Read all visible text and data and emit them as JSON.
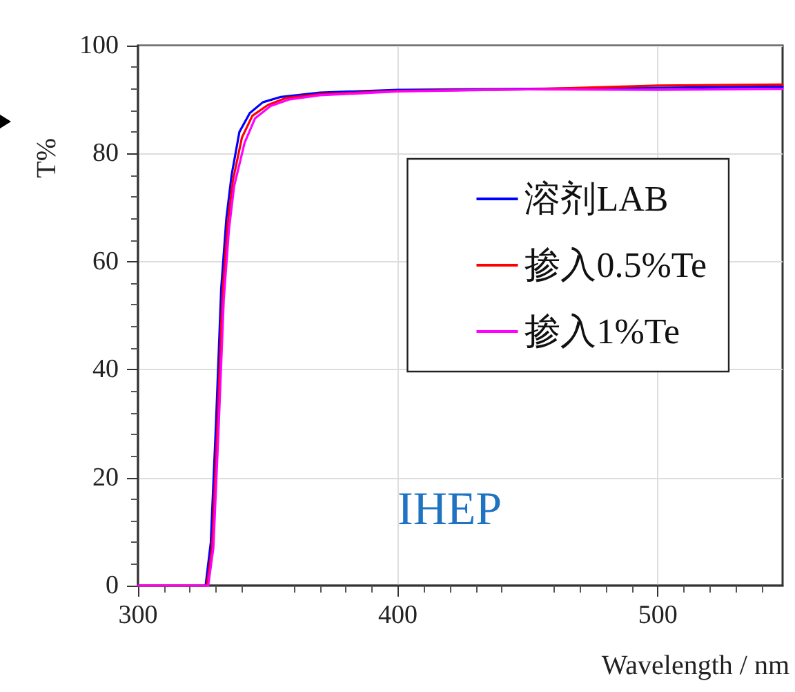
{
  "chart_data": {
    "type": "line",
    "xlabel": "Wavelength / nm",
    "ylabel": "T%",
    "xlim": [
      300,
      548
    ],
    "xticks": [
      300,
      400,
      500
    ],
    "ylim": [
      0,
      100
    ],
    "yticks": [
      0,
      20,
      40,
      60,
      80,
      100
    ],
    "grid": true,
    "legend": "right",
    "marker": "none",
    "line_style": "solid",
    "annotations": [
      "IHEP"
    ],
    "series": [
      {
        "name": "溶剂LAB",
        "color": "#0000ff",
        "x": [
          300,
          320,
          326,
          328,
          330,
          332,
          334,
          336,
          339,
          343,
          348,
          355,
          370,
          400,
          450,
          500,
          548
        ],
        "values": [
          0,
          0,
          0,
          8,
          30,
          55,
          68,
          76,
          84,
          87.5,
          89.5,
          90.5,
          91.3,
          91.8,
          92,
          92.2,
          92.4
        ]
      },
      {
        "name": "掺入0.5%Te",
        "color": "#ff0000",
        "x": [
          300,
          326.5,
          328.5,
          330.5,
          332.5,
          334.5,
          336.5,
          340,
          344,
          350,
          357,
          370,
          400,
          450,
          500,
          548
        ],
        "values": [
          0,
          0,
          7,
          29,
          54,
          67,
          75,
          83,
          87,
          89,
          90.3,
          91,
          91.6,
          91.9,
          92.6,
          92.8
        ]
      },
      {
        "name": "掺入1%Te",
        "color": "#ff00ff",
        "x": [
          300,
          327,
          329,
          331,
          333,
          335,
          337,
          341,
          345,
          351,
          358,
          370,
          400,
          450,
          500,
          548
        ],
        "values": [
          0,
          0,
          7,
          29,
          53,
          66,
          74,
          82,
          86.5,
          88.8,
          90,
          90.8,
          91.5,
          91.9,
          91.8,
          92
        ]
      }
    ]
  }
}
